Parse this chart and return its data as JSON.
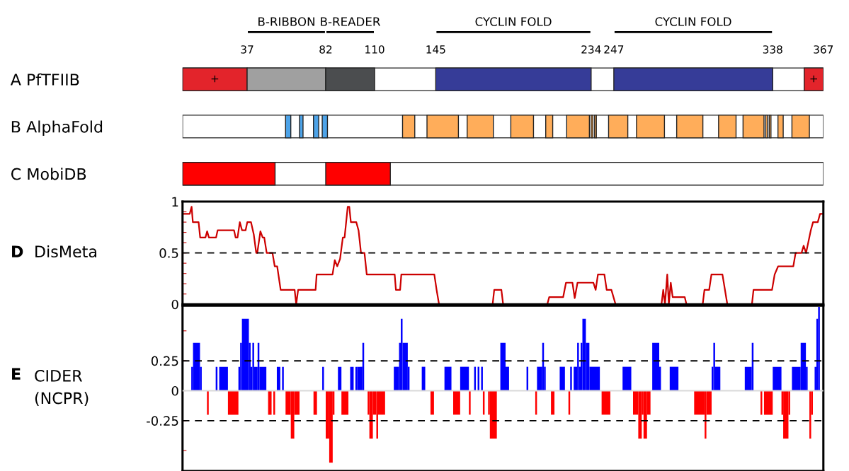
{
  "chart_data": [
    {
      "type": "bar",
      "orientation": "horizontal",
      "categories": [
        null,
        "A PfTFIIB",
        "B AlphaFold",
        "C MobiDB"
      ],
      "xlim": [
        0,
        367
      ],
      "xticks": [
        37,
        82,
        110,
        145,
        234,
        247,
        338,
        367
      ],
      "series": [
        {
          "base": [
            37,
            0,
            59,
            0
          ],
          "values": [
            45,
            37,
            3,
            53
          ],
          "colors": [
            "#000000",
            "#e3242b",
            "#4da3e8",
            "#ff0000"
          ],
          "value_labels": [
            "B-RIBBON",
            "+",
            null,
            null
          ]
        },
        {
          "base": [
            82,
            37,
            67,
            82
          ],
          "values": [
            28,
            45,
            2,
            37
          ],
          "colors": [
            "#000000",
            "#a0a0a0",
            "#4da3e8",
            "#ff0000"
          ],
          "value_labels": [
            "B-READER",
            null,
            null,
            null
          ]
        },
        {
          "base": [
            145,
            82,
            75,
            null
          ],
          "values": [
            89,
            28,
            3,
            null
          ],
          "colors": [
            "#000000",
            "#4b4d4f",
            "#4da3e8",
            null
          ],
          "value_labels": [
            "CYCLIN FOLD",
            null,
            null,
            null
          ]
        },
        {
          "base": [
            247,
            145,
            80,
            null
          ],
          "values": [
            91,
            89,
            3,
            null
          ],
          "colors": [
            "#000000",
            "#363c98",
            "#4da3e8",
            null
          ],
          "value_labels": [
            "CYCLIN FOLD",
            null,
            null,
            null
          ]
        },
        {
          "base": [
            null,
            247,
            126,
            null
          ],
          "values": [
            null,
            91,
            7,
            null
          ],
          "colors": [
            null,
            "#363c98",
            "#ffad5a",
            null
          ]
        },
        {
          "base": [
            null,
            356,
            140,
            null
          ],
          "values": [
            null,
            11,
            18,
            null
          ],
          "colors": [
            null,
            "#e3242b",
            "#ffad5a",
            null
          ],
          "value_labels": [
            null,
            "+",
            null,
            null
          ]
        },
        {
          "base": [
            null,
            null,
            163,
            null
          ],
          "values": [
            null,
            null,
            15,
            null
          ],
          "colors": [
            null,
            null,
            "#ffad5a",
            null
          ]
        },
        {
          "base": [
            null,
            null,
            188,
            null
          ],
          "values": [
            null,
            null,
            13,
            null
          ],
          "colors": [
            null,
            null,
            "#ffad5a",
            null
          ]
        },
        {
          "base": [
            null,
            null,
            208,
            null
          ],
          "values": [
            null,
            null,
            4,
            null
          ],
          "colors": [
            null,
            null,
            "#ffad5a",
            null
          ]
        },
        {
          "base": [
            null,
            null,
            220,
            null
          ],
          "values": [
            null,
            null,
            13,
            null
          ],
          "colors": [
            null,
            null,
            "#ffad5a",
            null
          ]
        },
        {
          "base": [
            null,
            null,
            234,
            null
          ],
          "values": [
            null,
            null,
            1,
            null
          ],
          "colors": [
            null,
            null,
            "#ffad5a",
            null
          ]
        },
        {
          "base": [
            null,
            null,
            236,
            null
          ],
          "values": [
            null,
            null,
            1,
            null
          ],
          "colors": [
            null,
            null,
            "#ffad5a",
            null
          ]
        },
        {
          "base": [
            null,
            null,
            244,
            null
          ],
          "values": [
            null,
            null,
            11,
            null
          ],
          "colors": [
            null,
            null,
            "#ffad5a",
            null
          ]
        },
        {
          "base": [
            null,
            null,
            260,
            null
          ],
          "values": [
            null,
            null,
            16,
            null
          ],
          "colors": [
            null,
            null,
            "#ffad5a",
            null
          ]
        },
        {
          "base": [
            null,
            null,
            283,
            null
          ],
          "values": [
            null,
            null,
            15,
            null
          ],
          "colors": [
            null,
            null,
            "#ffad5a",
            null
          ]
        },
        {
          "base": [
            null,
            null,
            307,
            null
          ],
          "values": [
            null,
            null,
            10,
            null
          ],
          "colors": [
            null,
            null,
            "#ffad5a",
            null
          ]
        },
        {
          "base": [
            null,
            null,
            321,
            null
          ],
          "values": [
            null,
            null,
            12,
            null
          ],
          "colors": [
            null,
            null,
            "#ffad5a",
            null
          ]
        },
        {
          "base": [
            null,
            null,
            334,
            null
          ],
          "values": [
            null,
            null,
            1,
            null
          ],
          "colors": [
            null,
            null,
            "#ffad5a",
            null
          ]
        },
        {
          "base": [
            null,
            null,
            336,
            null
          ],
          "values": [
            null,
            null,
            1,
            null
          ],
          "colors": [
            null,
            null,
            "#ffad5a",
            null
          ]
        },
        {
          "base": [
            null,
            null,
            341,
            null
          ],
          "values": [
            null,
            null,
            3,
            null
          ],
          "colors": [
            null,
            null,
            "#ffad5a",
            null
          ]
        },
        {
          "base": [
            null,
            null,
            349,
            null
          ],
          "values": [
            null,
            null,
            10,
            null
          ],
          "colors": [
            null,
            null,
            "#ffad5a",
            null
          ]
        }
      ]
    },
    {
      "type": "line",
      "ylabel": "D DisMeta",
      "xlim": [
        0,
        367
      ],
      "ylim": [
        0,
        1
      ],
      "tick_labels": "y",
      "yticks": [
        0,
        {
          "value": 0.1,
          "label": null
        },
        {
          "value": 0.2,
          "label": null
        },
        {
          "value": 0.3,
          "label": null
        },
        {
          "value": 0.4,
          "label": null
        },
        0.5,
        {
          "value": 0.6,
          "label": null
        },
        {
          "value": 0.7,
          "label": null
        },
        {
          "value": 0.8,
          "label": null
        },
        {
          "value": 0.9,
          "label": null
        },
        1
      ],
      "ref_lines": [
        {
          "axis": "y",
          "value": 0.5,
          "color": "#000000",
          "line_style": "dashed"
        }
      ],
      "series": [
        {
          "color": "#cc0000",
          "x": [
            0,
            4.1,
            5.2,
            5.9,
            9.2,
            10.1,
            13.1,
            14.1,
            15.1,
            19.2,
            20.1,
            29.5,
            30.4,
            31.5,
            32.8,
            34.1,
            36.1,
            37.1,
            39.2,
            40.8,
            42.2,
            42.8,
            44.6,
            45.9,
            46.8,
            48.2,
            51.5,
            52.8,
            54.2,
            56.2,
            64.2,
            65.1,
            66.2,
            76.2,
            76.8,
            85.9,
            87.2,
            88.6,
            90.2,
            91.8,
            92.8,
            94.6,
            95.5,
            96.4,
            99.5,
            100.8,
            102.2,
            104.2,
            105.5,
            121.5,
            122.2,
            124.6,
            125.3,
            144.2,
            145.5,
            146.9,
            177.6,
            178.5,
            182.6,
            183.6,
            208.9,
            210,
            218,
            219.6,
            223.3,
            224.6,
            226.2,
            235.3,
            236.6,
            237.9,
            241.6,
            242.9,
            245.6,
            248,
            274.3,
            275.3,
            276.3,
            277.6,
            278.5,
            279.6,
            280.7,
            287.6,
            288.6,
            297.9,
            298.9,
            301.6,
            302.9,
            309.2,
            312,
            326.1,
            327,
            337.6,
            339.1,
            341.1,
            349.8,
            351.1,
            354.5,
            355.7,
            357.1,
            359.8,
            361.1,
            363.8,
            365.1,
            366.8
          ],
          "values": [
            0.88,
            0.88,
            0.95,
            0.8,
            0.8,
            0.65,
            0.65,
            0.71,
            0.65,
            0.65,
            0.72,
            0.72,
            0.65,
            0.65,
            0.8,
            0.72,
            0.72,
            0.8,
            0.8,
            0.68,
            0.5,
            0.5,
            0.71,
            0.65,
            0.65,
            0.5,
            0.5,
            0.37,
            0.37,
            0.14,
            0.14,
            0,
            0.14,
            0.14,
            0.29,
            0.29,
            0.43,
            0.37,
            0.44,
            0.65,
            0.65,
            0.95,
            0.95,
            0.8,
            0.8,
            0.72,
            0.5,
            0.5,
            0.29,
            0.29,
            0.14,
            0.14,
            0.29,
            0.29,
            0.14,
            0,
            0,
            0.14,
            0.14,
            0,
            0,
            0.07,
            0.07,
            0.21,
            0.21,
            0.06,
            0.21,
            0.21,
            0.14,
            0.29,
            0.29,
            0.14,
            0.14,
            0,
            0,
            0.14,
            0,
            0.29,
            0,
            0.21,
            0.07,
            0.07,
            0,
            0,
            0.14,
            0.14,
            0.29,
            0.29,
            0,
            0,
            0.14,
            0.14,
            0.29,
            0.37,
            0.37,
            0.5,
            0.5,
            0.57,
            0.5,
            0.72,
            0.8,
            0.8,
            0.88,
            0.88
          ]
        }
      ]
    },
    {
      "type": "histogram",
      "ylabel": "E CIDER\n(NCPR)",
      "xlim": [
        0,
        367
      ],
      "ylim": [
        -0.67,
        0.71
      ],
      "tick_labels": "y",
      "yticks": [
        {
          "value": -0.5,
          "label": null
        },
        -0.25,
        0,
        0.25,
        {
          "value": 0.5,
          "label": null
        }
      ],
      "ref_lines": [
        {
          "axis": "y",
          "value": 0.25,
          "color": "#000000",
          "line_style": "dashed"
        },
        {
          "axis": "y",
          "value": -0.25,
          "color": "#000000",
          "line_style": "dashed"
        },
        {
          "axis": "y",
          "value": 0,
          "color": "#d9d9d9",
          "line_style": "solid"
        }
      ],
      "bins": [
        5,
        6,
        10,
        11,
        14,
        15,
        19,
        20,
        21,
        26,
        32,
        33,
        34,
        38,
        39,
        40,
        41,
        43,
        44,
        48,
        49,
        51,
        52,
        53,
        54,
        56,
        57,
        58,
        59,
        62,
        64,
        67,
        75,
        77,
        80,
        81,
        82,
        84,
        86,
        87,
        89,
        91,
        95,
        96,
        98,
        99,
        100,
        103,
        104,
        106,
        107,
        109,
        111,
        112,
        116,
        121,
        124,
        125,
        126,
        129,
        130,
        137,
        139,
        142,
        144,
        150,
        154,
        155,
        159,
        164,
        165,
        167,
        168,
        169,
        170,
        171,
        172,
        173,
        175,
        176,
        180,
        182,
        185,
        187,
        197,
        198,
        202,
        203,
        206,
        207,
        208,
        211,
        213,
        216,
        219,
        221,
        222,
        223,
        224,
        226,
        227,
        228,
        229,
        231,
        233,
        239,
        240,
        245,
        252,
        257,
        258,
        261,
        263,
        264,
        266,
        268,
        269,
        273,
        274,
        279,
        284,
        293,
        299,
        300,
        303,
        304,
        305,
        308,
        322,
        326,
        327,
        331,
        332,
        333,
        338,
        343,
        344,
        347,
        348,
        349,
        354,
        357,
        358,
        359,
        360,
        361,
        362,
        363,
        364,
        365
      ],
      "values": [
        0.2,
        0.4,
        0.2,
        null,
        -0.2,
        null,
        0.2,
        null,
        0.2,
        -0.2,
        0.2,
        0.4,
        0.6,
        0.4,
        0.2,
        0.4,
        0.2,
        0.4,
        0.2,
        null,
        -0.2,
        null,
        -0.2,
        null,
        0.2,
        null,
        0.2,
        null,
        -0.2,
        -0.4,
        -0.2,
        null,
        -0.2,
        null,
        0.2,
        null,
        -0.4,
        -0.6,
        -0.2,
        null,
        0.2,
        -0.2,
        null,
        0.2,
        null,
        0.2,
        0.2,
        0.4,
        null,
        -0.2,
        -0.4,
        -0.2,
        -0.4,
        -0.2,
        null,
        0.2,
        0.4,
        0.6,
        0.4,
        0.2,
        null,
        0.2,
        null,
        -0.2,
        null,
        0.2,
        null,
        -0.2,
        0.2,
        -0.2,
        null,
        0.2,
        null,
        0.2,
        null,
        0.2,
        -0.2,
        null,
        -0.2,
        -0.4,
        null,
        0.4,
        0.2,
        null,
        0.2,
        null,
        -0.2,
        0.2,
        0.4,
        0.2,
        null,
        -0.2,
        null,
        0.2,
        null,
        -0.2,
        0.2,
        null,
        0.2,
        0.4,
        0.2,
        0.4,
        0.6,
        0.4,
        0.2,
        null,
        -0.2,
        null,
        0.2,
        null,
        -0.2,
        -0.4,
        -0.2,
        -0.4,
        -0.2,
        null,
        0.4,
        0.2,
        null,
        0.2,
        null,
        -0.2,
        -0.4,
        -0.2,
        0.2,
        0.4,
        0.2,
        null,
        0.2,
        0.4,
        null,
        -0.2,
        null,
        -0.2,
        0.2,
        -0.2,
        -0.4,
        -0.2,
        null,
        0.2,
        0.4,
        0.2,
        null,
        -0.4,
        -0.2,
        null,
        0.2,
        0.6,
        0.7
      ],
      "colors": [
        "#0000ff",
        "#0000ff",
        "#0000ff",
        null,
        "#ff0000",
        null,
        "#0000ff",
        null,
        "#0000ff",
        "#ff0000",
        "#0000ff",
        "#0000ff",
        "#0000ff",
        "#0000ff",
        "#0000ff",
        "#0000ff",
        "#0000ff",
        "#0000ff",
        "#0000ff",
        null,
        "#ff0000",
        null,
        "#ff0000",
        null,
        "#0000ff",
        null,
        "#0000ff",
        null,
        "#ff0000",
        "#ff0000",
        "#ff0000",
        null,
        "#ff0000",
        null,
        "#0000ff",
        null,
        "#ff0000",
        "#ff0000",
        "#ff0000",
        null,
        "#0000ff",
        "#ff0000",
        null,
        "#0000ff",
        null,
        "#0000ff",
        "#0000ff",
        "#0000ff",
        null,
        "#ff0000",
        "#ff0000",
        "#ff0000",
        "#ff0000",
        "#ff0000",
        null,
        "#0000ff",
        "#0000ff",
        "#0000ff",
        "#0000ff",
        "#0000ff",
        null,
        "#0000ff",
        null,
        "#ff0000",
        null,
        "#0000ff",
        null,
        "#ff0000",
        "#0000ff",
        "#ff0000",
        null,
        "#0000ff",
        null,
        "#0000ff",
        null,
        "#0000ff",
        "#ff0000",
        null,
        "#ff0000",
        "#ff0000",
        null,
        "#0000ff",
        "#0000ff",
        null,
        "#0000ff",
        null,
        "#ff0000",
        "#0000ff",
        "#0000ff",
        "#0000ff",
        null,
        "#ff0000",
        null,
        "#0000ff",
        null,
        "#ff0000",
        "#0000ff",
        null,
        "#0000ff",
        "#0000ff",
        "#0000ff",
        "#0000ff",
        "#0000ff",
        "#0000ff",
        "#0000ff",
        null,
        "#ff0000",
        null,
        "#0000ff",
        null,
        "#ff0000",
        "#ff0000",
        "#ff0000",
        "#ff0000",
        "#ff0000",
        null,
        "#0000ff",
        "#0000ff",
        null,
        "#0000ff",
        null,
        "#ff0000",
        "#ff0000",
        "#ff0000",
        "#0000ff",
        "#0000ff",
        "#0000ff",
        null,
        "#0000ff",
        "#0000ff",
        null,
        "#ff0000",
        null,
        "#ff0000",
        "#0000ff",
        "#ff0000",
        "#ff0000",
        "#ff0000",
        null,
        "#0000ff",
        "#0000ff",
        "#0000ff",
        null,
        "#ff0000",
        "#ff0000",
        null,
        "#0000ff",
        "#0000ff",
        "#0000ff"
      ]
    }
  ]
}
